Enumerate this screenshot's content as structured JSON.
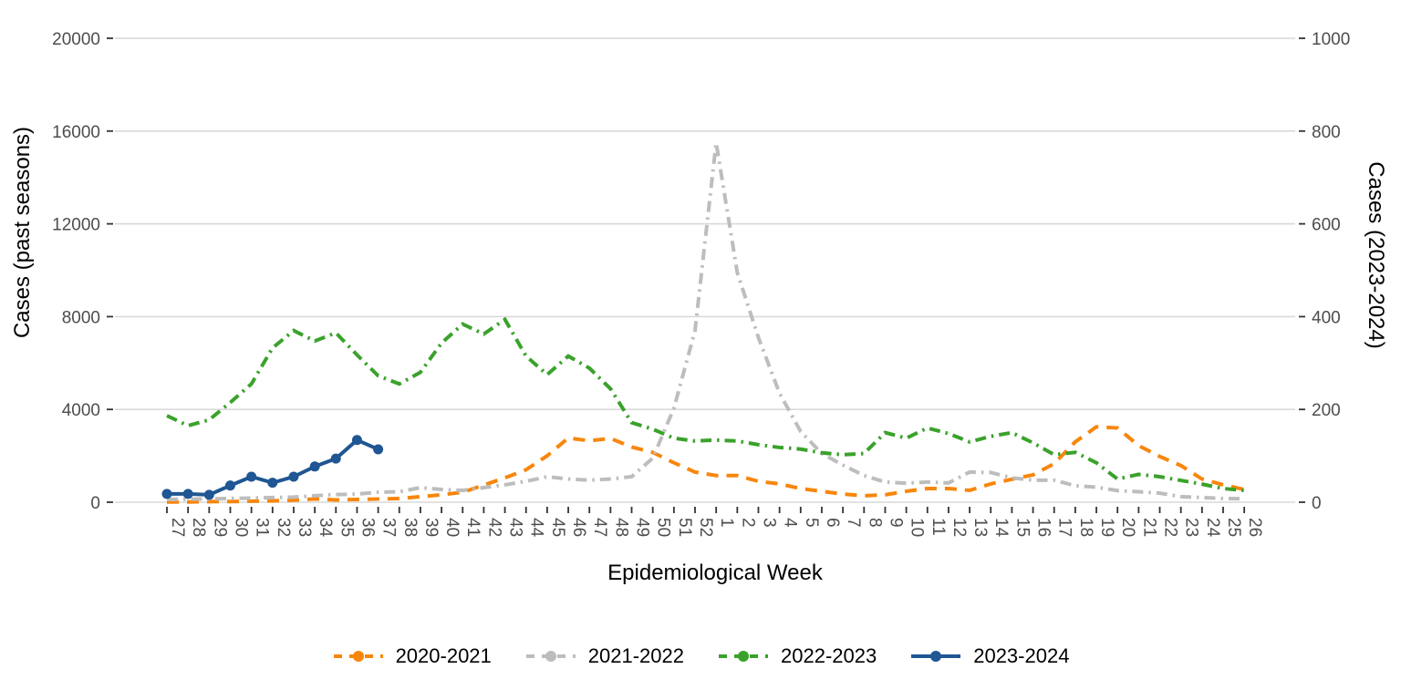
{
  "chart_data": {
    "type": "line",
    "title": "",
    "xlabel": "Epidemiological Week",
    "ylabel_left": "Cases (past seasons)",
    "ylabel_right": "Cases (2023-2024)",
    "grid": "horizontal-only",
    "legend_position": "bottom",
    "x_labels": [
      "27",
      "28",
      "29",
      "30",
      "31",
      "32",
      "33",
      "34",
      "35",
      "36",
      "37",
      "38",
      "39",
      "40",
      "41",
      "42",
      "43",
      "44",
      "45",
      "46",
      "47",
      "48",
      "49",
      "50",
      "51",
      "52",
      "1",
      "2",
      "3",
      "4",
      "5",
      "6",
      "7",
      "8",
      "9",
      "10",
      "11",
      "12",
      "13",
      "14",
      "15",
      "16",
      "17",
      "18",
      "19",
      "20",
      "21",
      "22",
      "23",
      "24",
      "25",
      "26"
    ],
    "left_axis": {
      "ticks": [
        "0",
        "4000",
        "8000",
        "12000",
        "16000",
        "20000"
      ],
      "range": [
        0,
        20000
      ]
    },
    "right_axis": {
      "ticks": [
        "0",
        "200",
        "400",
        "600",
        "800",
        "1000"
      ],
      "range": [
        0,
        1000
      ]
    },
    "series": [
      {
        "name": "2020-2021",
        "color": "#F8860B",
        "style": "dashed",
        "axis": "left",
        "marker": "none",
        "values": [
          10,
          10,
          25,
          30,
          45,
          60,
          90,
          140,
          100,
          120,
          140,
          160,
          240,
          320,
          430,
          740,
          1050,
          1400,
          2000,
          2770,
          2650,
          2750,
          2380,
          2150,
          1700,
          1300,
          1150,
          1150,
          900,
          790,
          590,
          470,
          350,
          280,
          320,
          470,
          590,
          590,
          510,
          790,
          990,
          1180,
          1660,
          2600,
          3250,
          3200,
          2440,
          1970,
          1580,
          1000,
          750,
          550
        ]
      },
      {
        "name": "2021-2022",
        "color": "#BDBDBD",
        "style": "dash-dot",
        "axis": "left",
        "marker": "none",
        "values": [
          120,
          130,
          140,
          160,
          180,
          200,
          220,
          280,
          330,
          350,
          430,
          450,
          630,
          550,
          510,
          630,
          750,
          900,
          1100,
          1000,
          950,
          1000,
          1100,
          1900,
          4050,
          7400,
          15500,
          9900,
          7100,
          4700,
          3050,
          2100,
          1600,
          1150,
          870,
          820,
          870,
          830,
          1300,
          1280,
          1050,
          950,
          950,
          710,
          650,
          500,
          450,
          390,
          240,
          200,
          160,
          150
        ]
      },
      {
        "name": "2022-2023",
        "color": "#3AA22B",
        "style": "dash-dot",
        "axis": "left",
        "marker": "none",
        "values": [
          3730,
          3300,
          3550,
          4300,
          5100,
          6650,
          7400,
          6950,
          7300,
          6350,
          5450,
          5100,
          5600,
          6860,
          7680,
          7250,
          7880,
          6300,
          5500,
          6300,
          5780,
          4890,
          3430,
          3150,
          2760,
          2640,
          2680,
          2640,
          2480,
          2360,
          2290,
          2130,
          2050,
          2100,
          3000,
          2760,
          3200,
          2960,
          2600,
          2840,
          3000,
          2560,
          2050,
          2150,
          1700,
          1000,
          1200,
          1100,
          940,
          780,
          590,
          510
        ]
      },
      {
        "name": "2023-2024",
        "color": "#1F5693",
        "style": "solid",
        "axis": "right",
        "marker": "circle",
        "values": [
          18,
          18,
          16,
          36,
          55,
          42,
          55,
          77,
          94,
          134,
          114,
          null,
          null,
          null,
          null,
          null,
          null,
          null,
          null,
          null,
          null,
          null,
          null,
          null,
          null,
          null,
          null,
          null,
          null,
          null,
          null,
          null,
          null,
          null,
          null,
          null,
          null,
          null,
          null,
          null,
          null,
          null,
          null,
          null,
          null,
          null,
          null,
          null,
          null,
          null,
          null,
          null
        ]
      }
    ]
  },
  "colors": {
    "grid": "#D9D9D9",
    "tick": "#333333",
    "tick_text": "#4d4d4d",
    "axis_text": "#000000"
  }
}
